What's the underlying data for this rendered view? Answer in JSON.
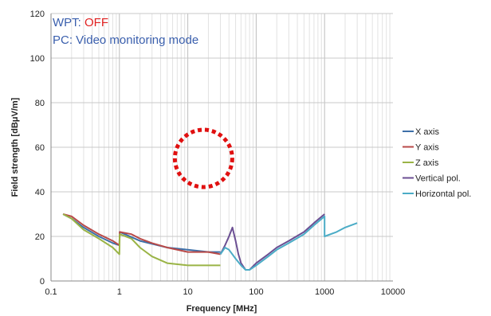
{
  "chart_data": {
    "type": "line",
    "title": "",
    "xlabel": "Frequency [MHz]",
    "ylabel": "Field strength [dBμV/m]",
    "xscale": "log",
    "xlim": [
      0.1,
      10000
    ],
    "ylim": [
      0,
      120
    ],
    "x_ticks": [
      0.1,
      1,
      10,
      100,
      1000,
      10000
    ],
    "x_tick_labels": [
      "0.1",
      "1",
      "10",
      "100",
      "1000",
      "10000"
    ],
    "y_ticks": [
      0,
      20,
      40,
      60,
      80,
      100,
      120
    ],
    "y_tick_labels": [
      "0",
      "20",
      "40",
      "60",
      "80",
      "100",
      "120"
    ],
    "grid": true,
    "legend_position": "right",
    "annotations": [
      {
        "prefix": "WPT: ",
        "value": "OFF",
        "prefix_color": "#3a5fad",
        "value_color": "#e02020"
      },
      {
        "text": "PC: Video monitoring mode",
        "color": "#3a5fad"
      }
    ],
    "highlight": {
      "shape": "dashed-circle",
      "color": "#e01010",
      "center_x": 17,
      "center_y": 55
    },
    "series": [
      {
        "name": "X axis",
        "color": "#3d6fa8",
        "x": [
          0.15,
          0.2,
          0.3,
          0.5,
          0.8,
          1.0,
          1.01,
          2,
          5,
          10,
          20,
          30
        ],
        "y": [
          30,
          28,
          24,
          20,
          17,
          16,
          22,
          18,
          15,
          14,
          13,
          13
        ]
      },
      {
        "name": "Y axis",
        "color": "#b94a48",
        "x": [
          0.15,
          0.2,
          0.3,
          0.5,
          0.8,
          1.0,
          1.01,
          1.5,
          2,
          3,
          5,
          10,
          20,
          30
        ],
        "y": [
          30,
          29,
          25,
          21,
          18,
          16,
          22,
          21,
          19,
          17,
          15,
          13,
          13,
          12
        ]
      },
      {
        "name": "Z axis",
        "color": "#9ab446",
        "x": [
          0.15,
          0.2,
          0.3,
          0.5,
          0.8,
          1.0,
          1.01,
          1.5,
          2,
          3,
          5,
          10,
          20,
          30
        ],
        "y": [
          30,
          28,
          23,
          19,
          15,
          12,
          21,
          19,
          15,
          11,
          8,
          7,
          7,
          7
        ]
      },
      {
        "name": "Vertical pol.",
        "color": "#6b4f93",
        "x": [
          30,
          35,
          40,
          45,
          50,
          55,
          60,
          70,
          80,
          100,
          150,
          200,
          300,
          500,
          700,
          1000
        ],
        "y": [
          12,
          16,
          20,
          24,
          18,
          12,
          8,
          5,
          5,
          8,
          12,
          15,
          18,
          22,
          26,
          30
        ]
      },
      {
        "name": "Horizontal pol.",
        "color": "#4bacc6",
        "x": [
          30,
          35,
          40,
          50,
          60,
          70,
          80,
          100,
          150,
          200,
          300,
          500,
          700,
          1000,
          1001,
          1500,
          2000,
          3000
        ],
        "y": [
          12,
          15,
          14,
          10,
          7,
          5,
          5,
          7,
          11,
          14,
          17,
          21,
          25,
          29,
          20,
          22,
          24,
          26
        ]
      }
    ]
  }
}
